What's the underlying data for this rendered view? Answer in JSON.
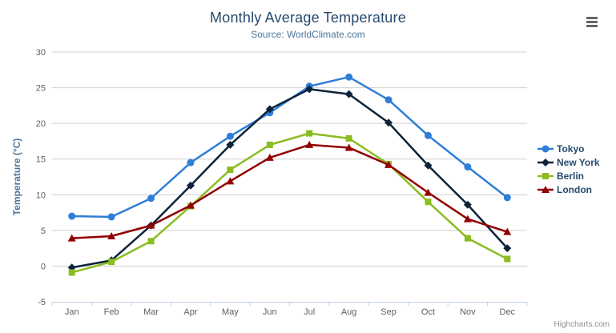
{
  "header": {
    "title": "Monthly Average Temperature",
    "subtitle": "Source: WorldClimate.com",
    "menu_icon": "hamburger-icon"
  },
  "credits": "Highcharts.com",
  "colors": {
    "title": "#274b6d",
    "subtitle": "#4d759e",
    "axis_title": "#4d759e",
    "axis_labels": "#606060",
    "gridline": "#d0d0d0",
    "axis_line": "#c0d0e0",
    "legend_text": "#274b6d",
    "menu_icon": "#666666",
    "credits_text": "#909090"
  },
  "chart_data": {
    "type": "line",
    "title": "Monthly Average Temperature",
    "subtitle": "Source: WorldClimate.com",
    "xlabel": "",
    "ylabel": "Temperature (°C)",
    "ylim": [
      -5,
      30
    ],
    "ytick_step": 5,
    "yticks": [
      -5,
      0,
      5,
      10,
      15,
      20,
      25,
      30
    ],
    "grid": true,
    "legend_position": "right",
    "categories": [
      "Jan",
      "Feb",
      "Mar",
      "Apr",
      "May",
      "Jun",
      "Jul",
      "Aug",
      "Sep",
      "Oct",
      "Nov",
      "Dec"
    ],
    "series": [
      {
        "name": "Tokyo",
        "color": "#2f7ed8",
        "marker": "circle",
        "values": [
          7.0,
          6.9,
          9.5,
          14.5,
          18.2,
          21.5,
          25.2,
          26.5,
          23.3,
          18.3,
          13.9,
          9.6
        ]
      },
      {
        "name": "New York",
        "color": "#0d233a",
        "marker": "diamond",
        "values": [
          -0.2,
          0.8,
          5.7,
          11.3,
          17.0,
          22.0,
          24.8,
          24.1,
          20.1,
          14.1,
          8.6,
          2.5
        ]
      },
      {
        "name": "Berlin",
        "color": "#8bbc21",
        "marker": "square",
        "values": [
          -0.9,
          0.6,
          3.5,
          8.4,
          13.5,
          17.0,
          18.6,
          17.9,
          14.3,
          9.0,
          3.9,
          1.0
        ]
      },
      {
        "name": "London",
        "color": "#910000",
        "marker": "triangle",
        "values": [
          3.9,
          4.2,
          5.7,
          8.5,
          11.9,
          15.2,
          17.0,
          16.6,
          14.2,
          10.3,
          6.6,
          4.8
        ]
      }
    ]
  }
}
